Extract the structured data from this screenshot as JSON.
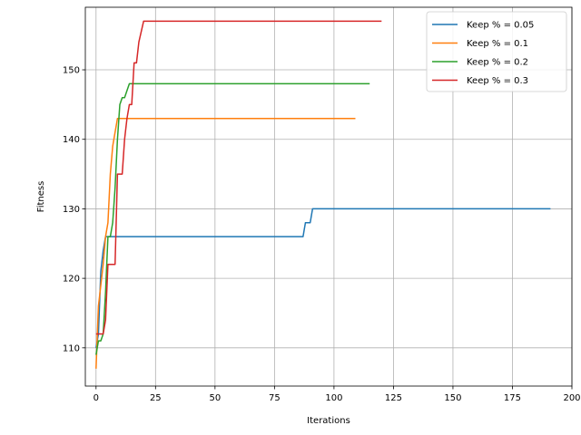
{
  "chart_data": {
    "type": "line",
    "title": "",
    "xlabel": "Iterations",
    "ylabel": "Fitness",
    "xlim": [
      -4.5,
      200
    ],
    "ylim": [
      104.5,
      159
    ],
    "xticks": [
      0,
      25,
      50,
      75,
      100,
      125,
      150,
      175,
      200
    ],
    "yticks": [
      110,
      120,
      130,
      140,
      150
    ],
    "grid": true,
    "legend_position": "top-right",
    "series": [
      {
        "name": "Keep % = 0.05",
        "color": "#1f77b4",
        "points": [
          [
            0,
            110
          ],
          [
            1,
            112
          ],
          [
            2,
            121
          ],
          [
            3,
            124
          ],
          [
            4,
            126
          ],
          [
            87,
            126
          ],
          [
            88,
            128
          ],
          [
            90,
            128
          ],
          [
            91,
            130
          ],
          [
            191,
            130
          ]
        ]
      },
      {
        "name": "Keep % = 0.1",
        "color": "#ff7f0e",
        "points": [
          [
            0,
            107
          ],
          [
            1,
            116
          ],
          [
            2,
            119
          ],
          [
            3,
            122
          ],
          [
            4,
            126
          ],
          [
            5,
            128
          ],
          [
            6,
            135
          ],
          [
            7,
            139
          ],
          [
            8,
            141
          ],
          [
            9,
            143
          ],
          [
            109,
            143
          ]
        ]
      },
      {
        "name": "Keep % = 0.2",
        "color": "#2ca02c",
        "points": [
          [
            0,
            109
          ],
          [
            1,
            111
          ],
          [
            2,
            111
          ],
          [
            3,
            112
          ],
          [
            4,
            118
          ],
          [
            5,
            126
          ],
          [
            6,
            126
          ],
          [
            7,
            128
          ],
          [
            8,
            133
          ],
          [
            9,
            140
          ],
          [
            10,
            145
          ],
          [
            11,
            146
          ],
          [
            12,
            146
          ],
          [
            13,
            147
          ],
          [
            14,
            148
          ],
          [
            115,
            148
          ]
        ]
      },
      {
        "name": "Keep % = 0.3",
        "color": "#d62728",
        "points": [
          [
            0,
            112
          ],
          [
            3,
            112
          ],
          [
            4,
            114
          ],
          [
            5,
            122
          ],
          [
            8,
            122
          ],
          [
            9,
            135
          ],
          [
            11,
            135
          ],
          [
            12,
            140
          ],
          [
            13,
            143
          ],
          [
            14,
            145
          ],
          [
            15,
            145
          ],
          [
            16,
            151
          ],
          [
            17,
            151
          ],
          [
            18,
            154
          ],
          [
            20,
            157
          ],
          [
            120,
            157
          ]
        ]
      }
    ]
  }
}
